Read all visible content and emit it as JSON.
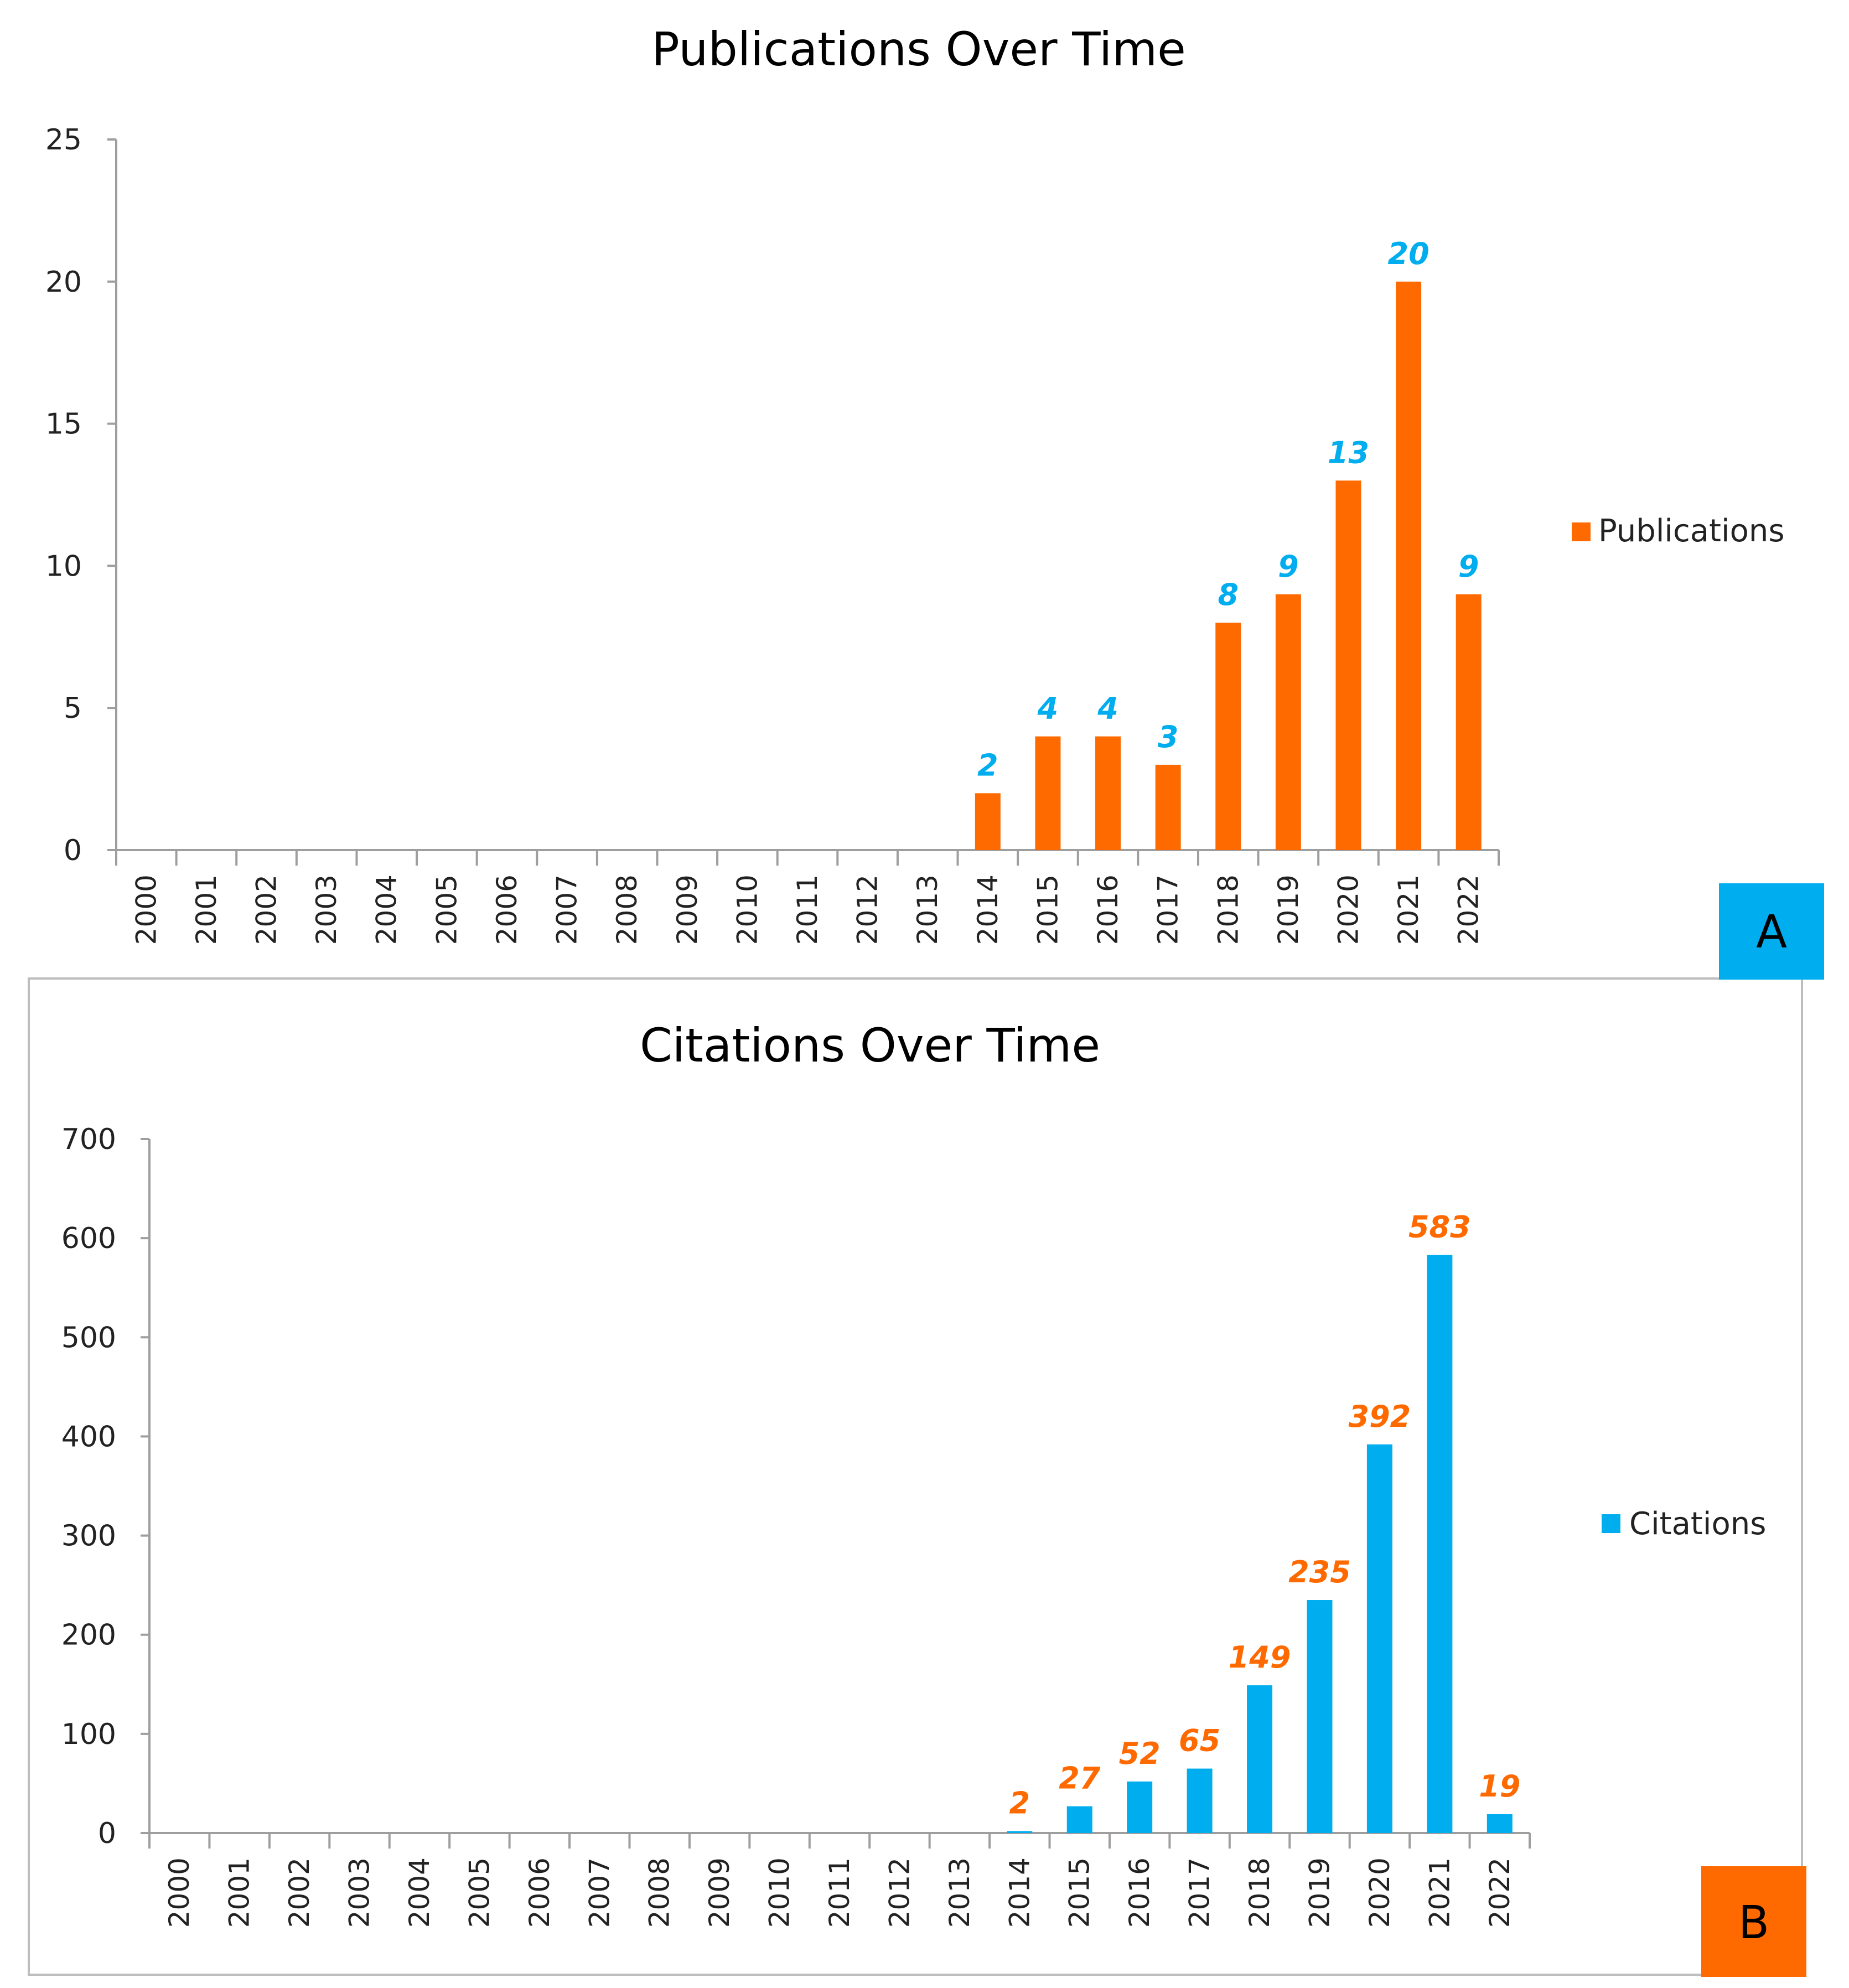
{
  "chart_data": [
    {
      "type": "bar",
      "title": "Publications Over Time",
      "panel_label": "A",
      "xlabel": "",
      "ylabel": "",
      "ylim": [
        0,
        25
      ],
      "yticks": [
        0,
        5,
        10,
        15,
        20,
        25
      ],
      "categories": [
        "2000",
        "2001",
        "2002",
        "2003",
        "2004",
        "2005",
        "2006",
        "2007",
        "2008",
        "2009",
        "2010",
        "2011",
        "2012",
        "2013",
        "2014",
        "2015",
        "2016",
        "2017",
        "2018",
        "2019",
        "2020",
        "2021",
        "2022"
      ],
      "series": [
        {
          "name": "Publications",
          "color": "#ff6a00",
          "values": [
            0,
            0,
            0,
            0,
            0,
            0,
            0,
            0,
            0,
            0,
            0,
            0,
            0,
            0,
            2,
            4,
            4,
            3,
            8,
            9,
            13,
            20,
            9
          ]
        }
      ],
      "data_label_color": "#00adef",
      "panel_label_bg": "#00adef",
      "legend_position": "right",
      "grid": false
    },
    {
      "type": "bar",
      "title": "Citations Over Time",
      "panel_label": "B",
      "xlabel": "",
      "ylabel": "",
      "ylim": [
        0,
        700
      ],
      "yticks": [
        0,
        100,
        200,
        300,
        400,
        500,
        600,
        700
      ],
      "categories": [
        "2000",
        "2001",
        "2002",
        "2003",
        "2004",
        "2005",
        "2006",
        "2007",
        "2008",
        "2009",
        "2010",
        "2011",
        "2012",
        "2013",
        "2014",
        "2015",
        "2016",
        "2017",
        "2018",
        "2019",
        "2020",
        "2021",
        "2022"
      ],
      "series": [
        {
          "name": "Citations",
          "color": "#00adef",
          "values": [
            0,
            0,
            0,
            0,
            0,
            0,
            0,
            0,
            0,
            0,
            0,
            0,
            0,
            0,
            2,
            27,
            52,
            65,
            149,
            235,
            392,
            583,
            19
          ]
        }
      ],
      "data_label_color": "#ff6a00",
      "panel_label_bg": "#ff6a00",
      "legend_position": "right",
      "grid": false
    }
  ]
}
